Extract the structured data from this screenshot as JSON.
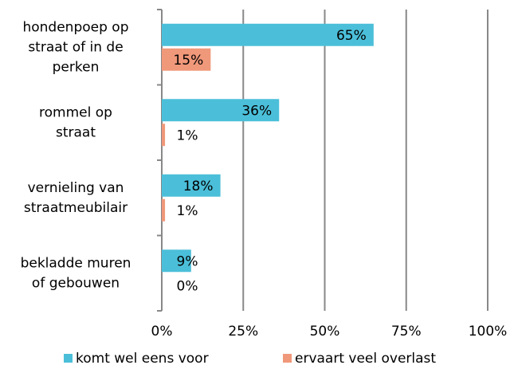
{
  "chart_data": {
    "type": "barh",
    "categories": [
      [
        "hondenpoep op",
        "straat of in de",
        "perken"
      ],
      [
        "rommel op",
        "straat"
      ],
      [
        "vernieling van",
        "straatmeubilair"
      ],
      [
        "bekladde muren",
        "of gebouwen"
      ]
    ],
    "series": [
      {
        "name": "komt wel eens voor",
        "color": "#4bbfd9",
        "values": [
          65,
          36,
          18,
          9
        ],
        "value_labels": [
          "65%",
          "36%",
          "18%",
          "9%"
        ]
      },
      {
        "name": "ervaart veel overlast",
        "color": "#f0987a",
        "values": [
          15,
          1,
          1,
          0
        ],
        "value_labels": [
          "15%",
          "1%",
          "1%",
          "0%"
        ]
      }
    ],
    "xlim": [
      0,
      100
    ],
    "xticks": [
      {
        "value": 0,
        "label": "0%"
      },
      {
        "value": 25,
        "label": "25%"
      },
      {
        "value": 50,
        "label": "50%"
      },
      {
        "value": 75,
        "label": "75%"
      },
      {
        "value": 100,
        "label": "100%"
      }
    ],
    "grid": true,
    "legend": "bottom"
  }
}
